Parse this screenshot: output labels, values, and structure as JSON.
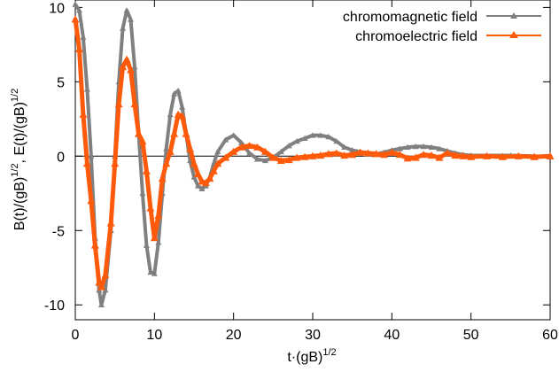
{
  "chart_data": {
    "type": "line",
    "xlabel": "t·(gB)",
    "xlabel_sup": "1/2",
    "ylabel_part1": "B(t)/(gB)",
    "ylabel_sup1": "1/2",
    "ylabel_part2": ", E(t)/(gB)",
    "ylabel_sup2": "1/2",
    "xlim": [
      0,
      60
    ],
    "ylim": [
      -11,
      10.5
    ],
    "xticks": [
      0,
      10,
      20,
      30,
      40,
      50,
      60
    ],
    "xtick_labels": [
      "0",
      "10",
      "20",
      "30",
      "40",
      "50",
      "60"
    ],
    "yticks": [
      -10,
      -5,
      0,
      5,
      10
    ],
    "ytick_labels": [
      "-10",
      "-5",
      "0",
      "5",
      "10"
    ],
    "zero_line": true,
    "grid": false,
    "legend_position": "top-right",
    "series": [
      {
        "name": "chromomagnetic field",
        "color": "#808080",
        "marker": "triangle",
        "points": [
          [
            0,
            10.2
          ],
          [
            0.5,
            9.8
          ],
          [
            1,
            8.0
          ],
          [
            1.5,
            4.5
          ],
          [
            2,
            0
          ],
          [
            2.5,
            -5.5
          ],
          [
            3,
            -9.0
          ],
          [
            3.3,
            -10.0
          ],
          [
            3.8,
            -9.0
          ],
          [
            4.5,
            -5.0
          ],
          [
            5,
            0
          ],
          [
            5.5,
            5.0
          ],
          [
            6,
            8.6
          ],
          [
            6.5,
            9.8
          ],
          [
            7,
            9.2
          ],
          [
            7.5,
            6.0
          ],
          [
            8,
            1.5
          ],
          [
            8.5,
            -2.5
          ],
          [
            9,
            -6.0
          ],
          [
            9.5,
            -7.8
          ],
          [
            10,
            -7.9
          ],
          [
            10.5,
            -5.8
          ],
          [
            11,
            -2.5
          ],
          [
            11.5,
            0.5
          ],
          [
            12,
            2.8
          ],
          [
            12.5,
            4.2
          ],
          [
            13,
            4.4
          ],
          [
            13.5,
            3.3
          ],
          [
            14,
            1.5
          ],
          [
            14.5,
            -0.3
          ],
          [
            15,
            -1.4
          ],
          [
            15.5,
            -2.0
          ],
          [
            16,
            -2.2
          ],
          [
            16.5,
            -2.0
          ],
          [
            17,
            -1.4
          ],
          [
            17.5,
            -0.5
          ],
          [
            18,
            0.3
          ],
          [
            19,
            1.1
          ],
          [
            20,
            1.4
          ],
          [
            21,
            0.9
          ],
          [
            22,
            0.2
          ],
          [
            23,
            -0.2
          ],
          [
            24,
            -0.3
          ],
          [
            25,
            -0.1
          ],
          [
            26,
            0.3
          ],
          [
            27,
            0.7
          ],
          [
            28,
            1.0
          ],
          [
            29,
            1.2
          ],
          [
            30,
            1.4
          ],
          [
            31,
            1.4
          ],
          [
            32,
            1.3
          ],
          [
            33,
            1.0
          ],
          [
            34,
            0.6
          ],
          [
            35,
            0.4
          ],
          [
            36,
            0.3
          ],
          [
            37,
            0.2
          ],
          [
            38,
            0.15
          ],
          [
            39,
            0.25
          ],
          [
            40,
            0.4
          ],
          [
            41,
            0.5
          ],
          [
            42,
            0.6
          ],
          [
            43,
            0.65
          ],
          [
            44,
            0.65
          ],
          [
            45,
            0.6
          ],
          [
            46,
            0.5
          ],
          [
            47,
            0.35
          ],
          [
            48,
            0.2
          ],
          [
            49,
            0.1
          ],
          [
            50,
            0.05
          ],
          [
            52,
            0.05
          ],
          [
            55,
            0.05
          ],
          [
            58,
            0.0
          ],
          [
            60,
            -0.05
          ]
        ]
      },
      {
        "name": "chromoelectric field",
        "color": "#ff5a0a",
        "marker": "triangle",
        "points": [
          [
            0,
            9.2
          ],
          [
            0.5,
            7.2
          ],
          [
            1,
            2.8
          ],
          [
            1.5,
            -0.5
          ],
          [
            2,
            -3.0
          ],
          [
            2.5,
            -6.0
          ],
          [
            3,
            -8.5
          ],
          [
            3.3,
            -8.8
          ],
          [
            3.8,
            -8.0
          ],
          [
            4.5,
            -4.5
          ],
          [
            5,
            -0.5
          ],
          [
            5.5,
            3.5
          ],
          [
            6,
            6.0
          ],
          [
            6.5,
            6.5
          ],
          [
            7,
            5.8
          ],
          [
            7.5,
            3.5
          ],
          [
            8,
            1.5
          ],
          [
            8.5,
            1.0
          ],
          [
            9,
            -1.0
          ],
          [
            9.5,
            -3.5
          ],
          [
            10,
            -5.5
          ],
          [
            10.5,
            -4.0
          ],
          [
            11,
            -1.5
          ],
          [
            11.5,
            -0.5
          ],
          [
            12,
            0.3
          ],
          [
            12.5,
            1.5
          ],
          [
            13,
            2.8
          ],
          [
            13.5,
            2.7
          ],
          [
            14,
            1.5
          ],
          [
            14.5,
            0.5
          ],
          [
            15,
            -0.5
          ],
          [
            15.5,
            -1.2
          ],
          [
            16,
            -1.7
          ],
          [
            16.5,
            -1.8
          ],
          [
            17,
            -1.5
          ],
          [
            17.5,
            -1.0
          ],
          [
            18,
            -0.5
          ],
          [
            19,
            -0.1
          ],
          [
            20,
            0.3
          ],
          [
            21,
            0.6
          ],
          [
            22,
            0.7
          ],
          [
            23,
            0.6
          ],
          [
            24,
            0.3
          ],
          [
            25,
            -0.1
          ],
          [
            26,
            -0.3
          ],
          [
            27,
            -0.25
          ],
          [
            28,
            -0.1
          ],
          [
            29,
            -0.05
          ],
          [
            30,
            0.0
          ],
          [
            31,
            0.05
          ],
          [
            32,
            0.15
          ],
          [
            33,
            0.2
          ],
          [
            34,
            0.05
          ],
          [
            35,
            0.1
          ],
          [
            36,
            0.25
          ],
          [
            37,
            0.2
          ],
          [
            38,
            0.15
          ],
          [
            39,
            0.1
          ],
          [
            40,
            0.25
          ],
          [
            41,
            0.1
          ],
          [
            42,
            -0.15
          ],
          [
            43,
            -0.1
          ],
          [
            44,
            0.1
          ],
          [
            45,
            0.05
          ],
          [
            46,
            -0.1
          ],
          [
            47,
            0.2
          ],
          [
            48,
            0.05
          ],
          [
            49,
            0.0
          ],
          [
            50,
            -0.05
          ],
          [
            52,
            0.0
          ],
          [
            54,
            -0.05
          ],
          [
            56,
            0.0
          ],
          [
            58,
            -0.05
          ],
          [
            60,
            0.0
          ]
        ]
      }
    ]
  }
}
